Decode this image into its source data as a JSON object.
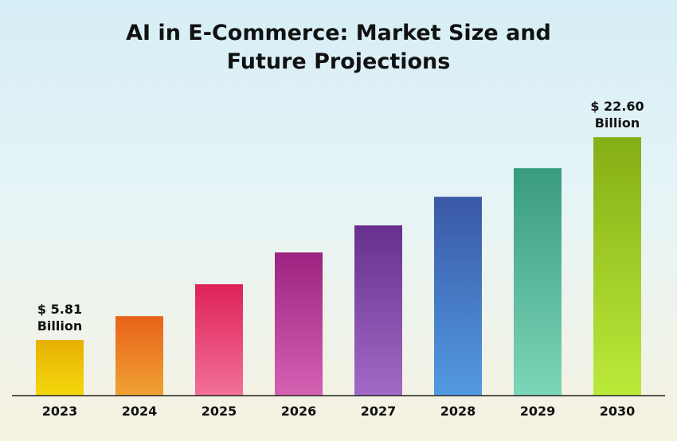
{
  "chart_data": {
    "type": "bar",
    "title": "AI in E-Commerce: Market Size and Future Projections",
    "categories": [
      "2023",
      "2024",
      "2025",
      "2026",
      "2027",
      "2028",
      "2029",
      "2030"
    ],
    "values": [
      5.81,
      7.78,
      10.42,
      13.05,
      15.29,
      17.66,
      20.03,
      22.6
    ],
    "value_labels": [
      "$ 5.81 Billion",
      null,
      null,
      null,
      null,
      null,
      null,
      "$ 22.60 Billion"
    ],
    "colors": [
      [
        "#e8b004",
        "#f2d80c"
      ],
      [
        "#e8621a",
        "#f0a234"
      ],
      [
        "#de2258",
        "#f27098"
      ],
      [
        "#9c2380",
        "#d462b2"
      ],
      [
        "#68308e",
        "#a26ac6"
      ],
      [
        "#3a58a6",
        "#529ae2"
      ],
      [
        "#389a7e",
        "#7ed6ba"
      ],
      [
        "#86ae16",
        "#bcea3a"
      ]
    ],
    "ylim": [
      1.2,
      24
    ]
  }
}
